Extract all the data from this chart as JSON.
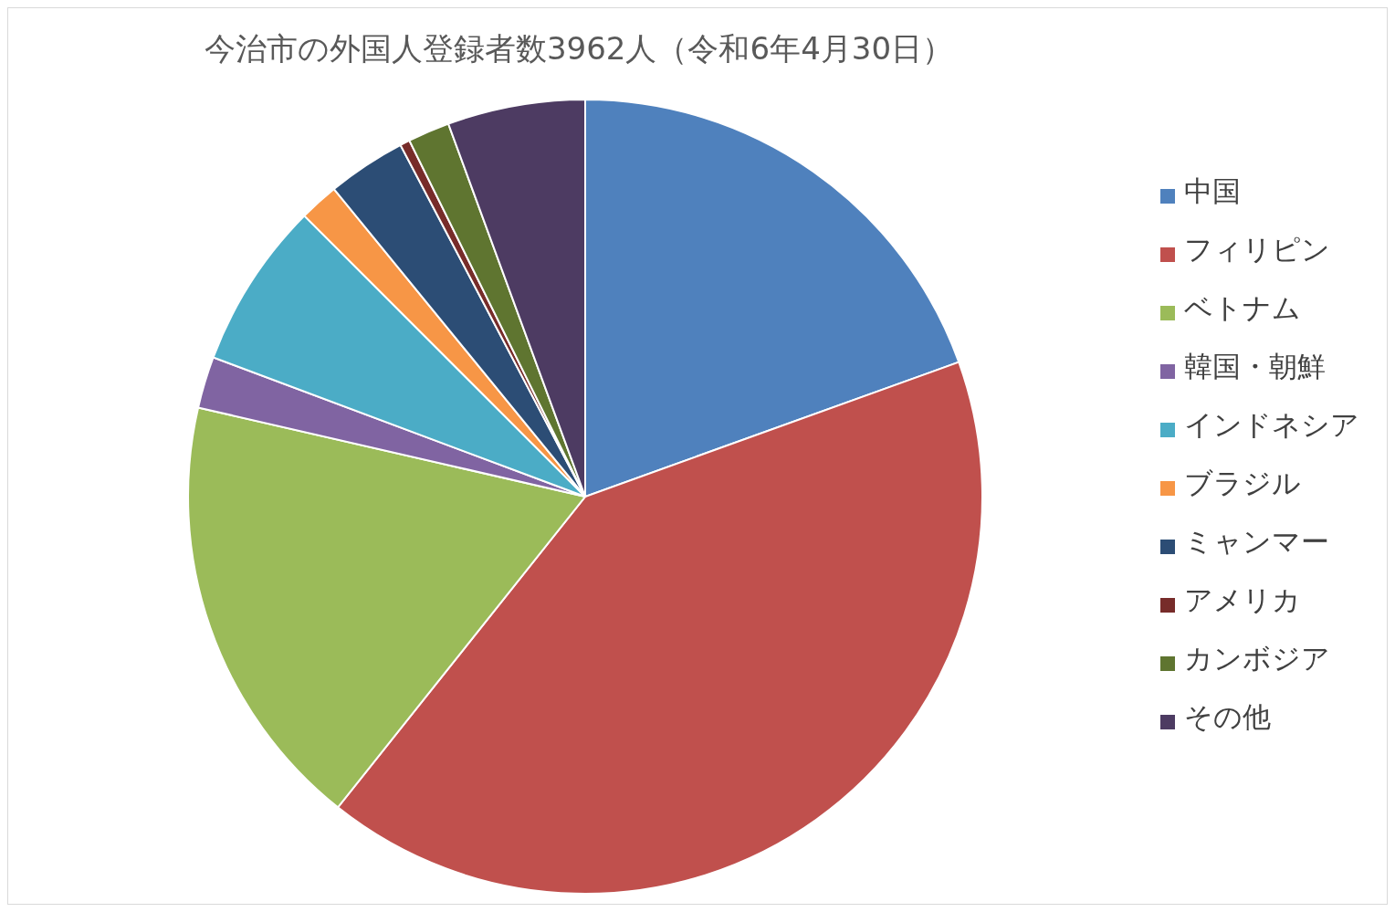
{
  "chart_data": {
    "type": "pie",
    "title": "今治市の外国人登録者数3962人（令和6年4月30日）",
    "categories": [
      "中国",
      "フィリピン",
      "ベトナム",
      "韓国・朝鮮",
      "インドネシア",
      "ブラジル",
      "ミャンマー",
      "アメリカ",
      "カンボジア",
      "その他"
    ],
    "values": [
      19.5,
      41.2,
      17.9,
      2.1,
      6.8,
      1.6,
      3.2,
      0.4,
      1.7,
      5.6
    ],
    "colors": [
      "#4f81bd",
      "#c0504d",
      "#9bbb59",
      "#8064a2",
      "#4bacc6",
      "#f79646",
      "#2c4d75",
      "#772c2a",
      "#5f7530",
      "#4d3b62"
    ],
    "legend": "right"
  }
}
